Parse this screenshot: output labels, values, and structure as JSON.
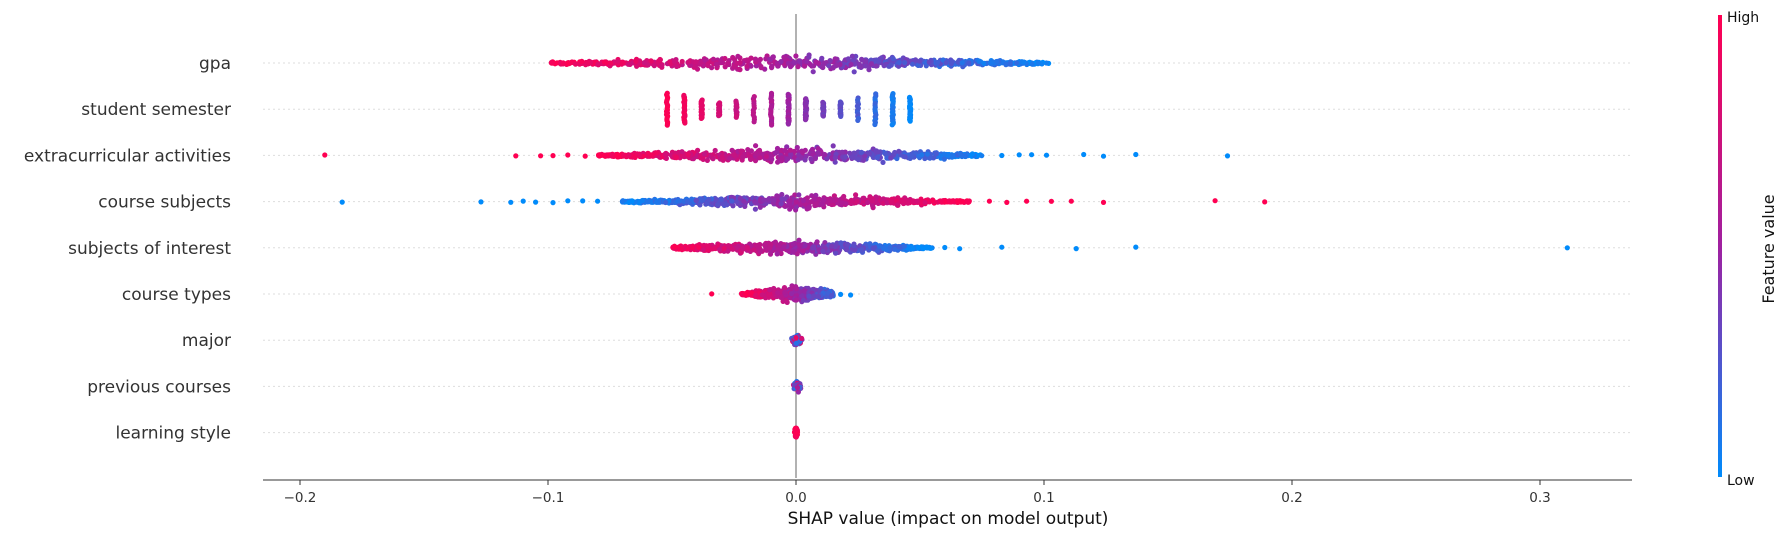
{
  "chart_data": {
    "type": "scatter",
    "subtype": "shap-beeswarm-summary",
    "xlabel": "SHAP value (impact on model output)",
    "xlim": [
      -0.215,
      0.335
    ],
    "x_ticks": [
      -0.2,
      -0.1,
      0.0,
      0.1,
      0.2,
      0.3
    ],
    "x_tick_labels": [
      "−0.2",
      "−0.1",
      "0.0",
      "0.1",
      "0.2",
      "0.3"
    ],
    "zero_line": 0.0,
    "grid": "faint dotted horizontal guides per feature row",
    "colors": {
      "low": "#008bfb",
      "mid": "#a020a0",
      "high": "#ff0052",
      "zero_line": "#999999",
      "axis": "#333333"
    },
    "colorbar": {
      "title": "Feature value",
      "high_label": "High",
      "low_label": "Low",
      "placement": "right"
    },
    "features": [
      {
        "name": "gpa",
        "min": -0.099,
        "max": 0.102,
        "outliers": [],
        "pattern": "continuous",
        "direction": "high-left"
      },
      {
        "name": "student semester",
        "min": -0.052,
        "max": 0.046,
        "outliers": [],
        "pattern": "discrete",
        "levels": [
          -0.052,
          -0.045,
          -0.038,
          -0.031,
          -0.024,
          -0.017,
          -0.01,
          -0.003,
          0.004,
          0.011,
          0.018,
          0.025,
          0.032,
          0.039,
          0.046
        ],
        "direction": "high-left"
      },
      {
        "name": "extracurricular activities",
        "min": -0.08,
        "max": 0.075,
        "outliers": [
          -0.19,
          -0.113,
          -0.103,
          -0.098,
          -0.092,
          -0.085,
          0.083,
          0.09,
          0.095,
          0.101,
          0.116,
          0.124,
          0.137,
          0.174
        ],
        "pattern": "continuous",
        "direction": "high-left"
      },
      {
        "name": "course subjects",
        "min": -0.07,
        "max": 0.07,
        "outliers": [
          -0.183,
          -0.127,
          -0.115,
          -0.11,
          -0.105,
          -0.098,
          -0.092,
          -0.086,
          -0.08,
          0.078,
          0.085,
          0.093,
          0.103,
          0.111,
          0.124,
          0.169,
          0.189
        ],
        "pattern": "continuous",
        "direction": "high-right"
      },
      {
        "name": "subjects of interest",
        "min": -0.05,
        "max": 0.055,
        "outliers": [
          0.06,
          0.066,
          0.083,
          0.113,
          0.137,
          0.311
        ],
        "pattern": "continuous",
        "direction": "high-left"
      },
      {
        "name": "course types",
        "min": -0.022,
        "max": 0.015,
        "outliers": [
          -0.034,
          -0.02,
          0.018,
          0.022
        ],
        "pattern": "continuous",
        "direction": "high-left"
      },
      {
        "name": "major",
        "min": -0.003,
        "max": 0.004,
        "outliers": [],
        "pattern": "tight",
        "direction": "mixed"
      },
      {
        "name": "previous courses",
        "min": -0.002,
        "max": 0.003,
        "outliers": [],
        "pattern": "tight",
        "direction": "mixed"
      },
      {
        "name": "learning style",
        "min": -0.001,
        "max": 0.001,
        "outliers": [],
        "pattern": "tight",
        "direction": "high"
      }
    ]
  }
}
